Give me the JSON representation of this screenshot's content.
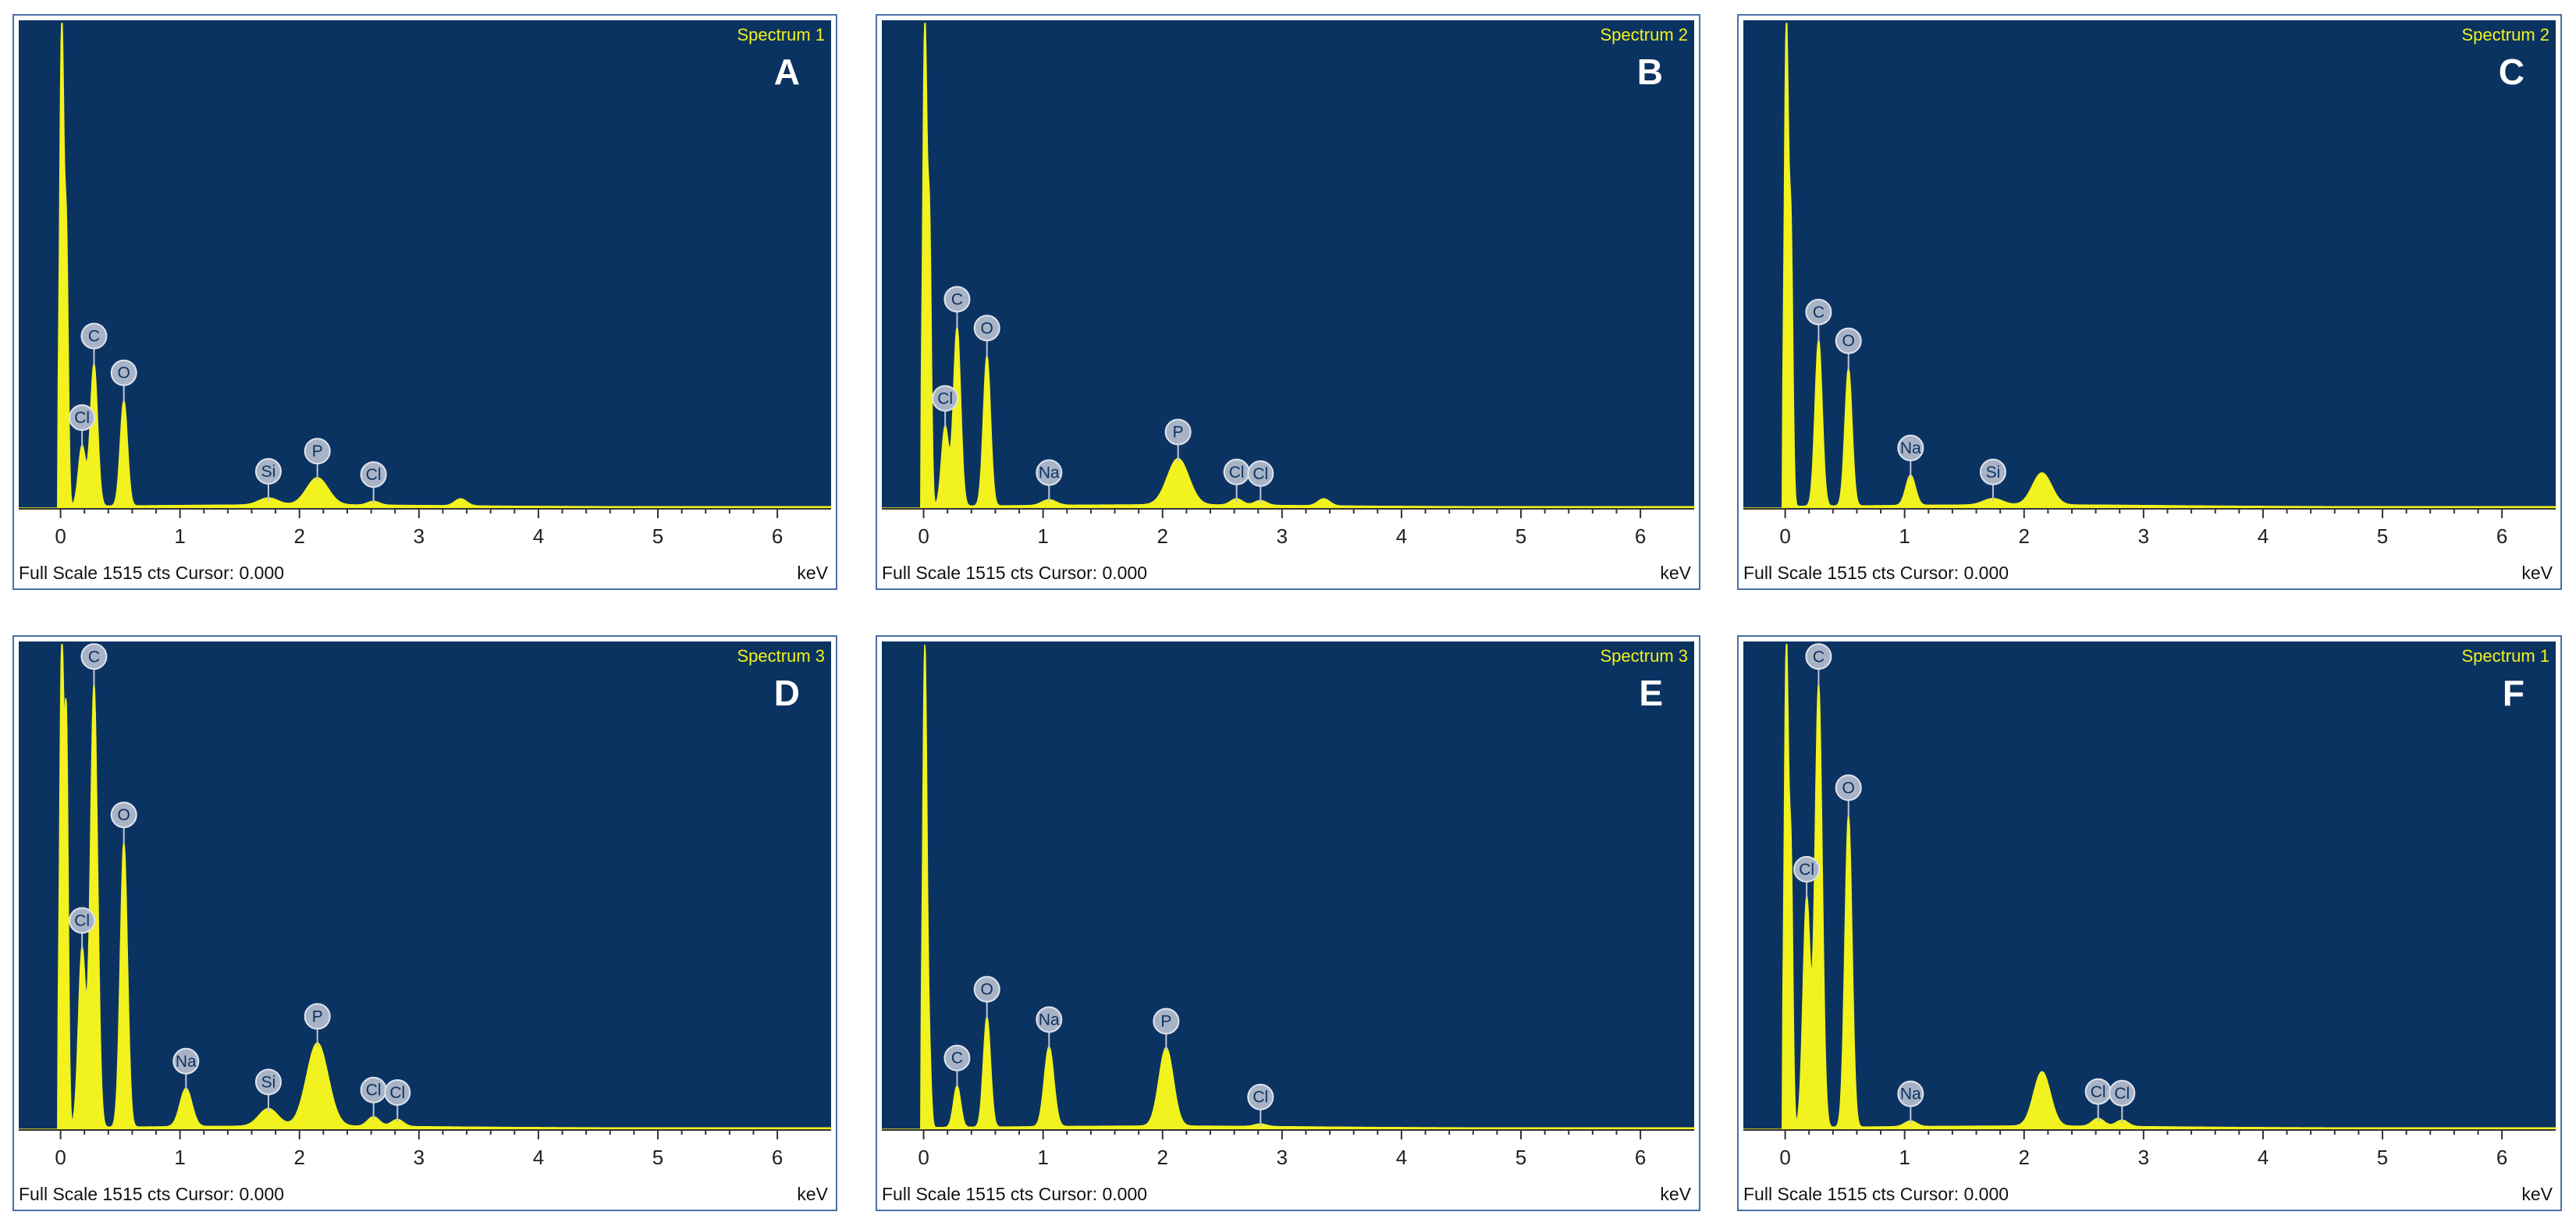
{
  "chart_data": [
    {
      "type": "line",
      "panel": "A",
      "title": "Spectrum 1",
      "xlabel": "keV",
      "footer": "Full Scale 1515 cts Cursor: 0.000",
      "xlim": [
        -0.35,
        6.45
      ],
      "ylim": [
        0,
        1515
      ],
      "xticks": [
        0,
        1,
        2,
        3,
        4,
        5,
        6
      ],
      "grid": false,
      "peaks": [
        {
          "x": 0.01,
          "y": 1515,
          "w": 0.018
        },
        {
          "x": 0.05,
          "y": 780,
          "w": 0.015
        },
        {
          "x": 0.18,
          "y": 190,
          "w": 0.03
        },
        {
          "x": 0.28,
          "y": 445,
          "w": 0.03
        },
        {
          "x": 0.53,
          "y": 330,
          "w": 0.03
        },
        {
          "x": 1.74,
          "y": 22,
          "w": 0.08
        },
        {
          "x": 2.15,
          "y": 85,
          "w": 0.09
        },
        {
          "x": 2.62,
          "y": 12,
          "w": 0.05
        },
        {
          "x": 3.35,
          "y": 22,
          "w": 0.05
        }
      ],
      "markers": [
        {
          "label": "Cl",
          "x": 0.18,
          "y": 190
        },
        {
          "label": "C",
          "x": 0.28,
          "y": 445
        },
        {
          "label": "O",
          "x": 0.53,
          "y": 330
        },
        {
          "label": "Si",
          "x": 1.74,
          "y": 22
        },
        {
          "label": "P",
          "x": 2.15,
          "y": 85
        },
        {
          "label": "Cl",
          "x": 2.62,
          "y": 12
        }
      ]
    },
    {
      "type": "line",
      "panel": "B",
      "title": "Spectrum 2",
      "xlabel": "keV",
      "footer": "Full Scale 1515 cts Cursor: 0.000",
      "xlim": [
        -0.35,
        6.45
      ],
      "ylim": [
        0,
        1515
      ],
      "xticks": [
        0,
        1,
        2,
        3,
        4,
        5,
        6
      ],
      "grid": false,
      "peaks": [
        {
          "x": 0.01,
          "y": 1515,
          "w": 0.018
        },
        {
          "x": 0.05,
          "y": 820,
          "w": 0.015
        },
        {
          "x": 0.18,
          "y": 250,
          "w": 0.03
        },
        {
          "x": 0.28,
          "y": 560,
          "w": 0.03
        },
        {
          "x": 0.53,
          "y": 470,
          "w": 0.03
        },
        {
          "x": 1.05,
          "y": 18,
          "w": 0.06
        },
        {
          "x": 2.13,
          "y": 145,
          "w": 0.09
        },
        {
          "x": 2.62,
          "y": 20,
          "w": 0.05
        },
        {
          "x": 2.82,
          "y": 15,
          "w": 0.05
        },
        {
          "x": 3.35,
          "y": 22,
          "w": 0.05
        }
      ],
      "markers": [
        {
          "label": "Cl",
          "x": 0.18,
          "y": 250
        },
        {
          "label": "C",
          "x": 0.28,
          "y": 560
        },
        {
          "label": "O",
          "x": 0.53,
          "y": 470
        },
        {
          "label": "Na",
          "x": 1.05,
          "y": 18
        },
        {
          "label": "P",
          "x": 2.13,
          "y": 145
        },
        {
          "label": "Cl",
          "x": 2.62,
          "y": 20
        },
        {
          "label": "Cl",
          "x": 2.82,
          "y": 15
        }
      ]
    },
    {
      "type": "line",
      "panel": "C",
      "title": "Spectrum 2",
      "xlabel": "keV",
      "footer": "Full Scale 1515 cts Cursor: 0.000",
      "xlim": [
        -0.35,
        6.45
      ],
      "ylim": [
        0,
        1515
      ],
      "xticks": [
        0,
        1,
        2,
        3,
        4,
        5,
        6
      ],
      "grid": false,
      "peaks": [
        {
          "x": 0.01,
          "y": 1515,
          "w": 0.018
        },
        {
          "x": 0.05,
          "y": 790,
          "w": 0.015
        },
        {
          "x": 0.28,
          "y": 520,
          "w": 0.03
        },
        {
          "x": 0.53,
          "y": 430,
          "w": 0.03
        },
        {
          "x": 1.05,
          "y": 95,
          "w": 0.04
        },
        {
          "x": 1.74,
          "y": 20,
          "w": 0.08
        },
        {
          "x": 2.15,
          "y": 100,
          "w": 0.08
        }
      ],
      "markers": [
        {
          "label": "C",
          "x": 0.28,
          "y": 520
        },
        {
          "label": "O",
          "x": 0.53,
          "y": 430
        },
        {
          "label": "Na",
          "x": 1.05,
          "y": 95
        },
        {
          "label": "Si",
          "x": 1.74,
          "y": 20
        }
      ]
    },
    {
      "type": "line",
      "panel": "D",
      "title": "Spectrum 3",
      "xlabel": "keV",
      "footer": "Full Scale 1515 cts Cursor: 0.000",
      "xlim": [
        -0.35,
        6.45
      ],
      "ylim": [
        0,
        1515
      ],
      "xticks": [
        0,
        1,
        2,
        3,
        4,
        5,
        6
      ],
      "grid": false,
      "peaks": [
        {
          "x": 0.01,
          "y": 1515,
          "w": 0.018
        },
        {
          "x": 0.05,
          "y": 1180,
          "w": 0.015
        },
        {
          "x": 0.18,
          "y": 560,
          "w": 0.03
        },
        {
          "x": 0.28,
          "y": 1385,
          "w": 0.03
        },
        {
          "x": 0.53,
          "y": 890,
          "w": 0.03
        },
        {
          "x": 1.05,
          "y": 120,
          "w": 0.05
        },
        {
          "x": 1.74,
          "y": 55,
          "w": 0.08
        },
        {
          "x": 2.15,
          "y": 260,
          "w": 0.09
        },
        {
          "x": 2.62,
          "y": 30,
          "w": 0.05
        },
        {
          "x": 2.82,
          "y": 22,
          "w": 0.05
        }
      ],
      "markers": [
        {
          "label": "Cl",
          "x": 0.18,
          "y": 560
        },
        {
          "label": "C",
          "x": 0.28,
          "y": 1385
        },
        {
          "label": "O",
          "x": 0.53,
          "y": 890
        },
        {
          "label": "Na",
          "x": 1.05,
          "y": 120
        },
        {
          "label": "Si",
          "x": 1.74,
          "y": 55
        },
        {
          "label": "P",
          "x": 2.15,
          "y": 260
        },
        {
          "label": "Cl",
          "x": 2.62,
          "y": 30
        },
        {
          "label": "Cl",
          "x": 2.82,
          "y": 22
        }
      ]
    },
    {
      "type": "line",
      "panel": "E",
      "title": "Spectrum 3",
      "xlabel": "keV",
      "footer": "Full Scale 1515 cts Cursor: 0.000",
      "xlim": [
        -0.35,
        6.45
      ],
      "ylim": [
        0,
        1515
      ],
      "xticks": [
        0,
        1,
        2,
        3,
        4,
        5,
        6
      ],
      "grid": false,
      "peaks": [
        {
          "x": 0.01,
          "y": 1515,
          "w": 0.018
        },
        {
          "x": 0.05,
          "y": 190,
          "w": 0.015
        },
        {
          "x": 0.28,
          "y": 130,
          "w": 0.03
        },
        {
          "x": 0.53,
          "y": 345,
          "w": 0.03
        },
        {
          "x": 1.05,
          "y": 250,
          "w": 0.04
        },
        {
          "x": 2.03,
          "y": 245,
          "w": 0.06
        },
        {
          "x": 2.82,
          "y": 8,
          "w": 0.05
        }
      ],
      "markers": [
        {
          "label": "C",
          "x": 0.28,
          "y": 130
        },
        {
          "label": "O",
          "x": 0.53,
          "y": 345
        },
        {
          "label": "Na",
          "x": 1.05,
          "y": 250
        },
        {
          "label": "P",
          "x": 2.03,
          "y": 245
        },
        {
          "label": "Cl",
          "x": 2.82,
          "y": 8
        }
      ]
    },
    {
      "type": "line",
      "panel": "F",
      "title": "Spectrum 1",
      "xlabel": "keV",
      "footer": "Full Scale 1515 cts Cursor: 0.000",
      "xlim": [
        -0.35,
        6.45
      ],
      "ylim": [
        0,
        1515
      ],
      "xticks": [
        0,
        1,
        2,
        3,
        4,
        5,
        6
      ],
      "grid": false,
      "peaks": [
        {
          "x": 0.01,
          "y": 1515,
          "w": 0.018
        },
        {
          "x": 0.05,
          "y": 780,
          "w": 0.015
        },
        {
          "x": 0.18,
          "y": 720,
          "w": 0.03
        },
        {
          "x": 0.28,
          "y": 1385,
          "w": 0.03
        },
        {
          "x": 0.53,
          "y": 975,
          "w": 0.03
        },
        {
          "x": 1.05,
          "y": 18,
          "w": 0.05
        },
        {
          "x": 2.15,
          "y": 170,
          "w": 0.07
        },
        {
          "x": 2.62,
          "y": 25,
          "w": 0.05
        },
        {
          "x": 2.82,
          "y": 20,
          "w": 0.05
        }
      ],
      "markers": [
        {
          "label": "Cl",
          "x": 0.18,
          "y": 720
        },
        {
          "label": "C",
          "x": 0.28,
          "y": 1385
        },
        {
          "label": "O",
          "x": 0.53,
          "y": 975
        },
        {
          "label": "Na",
          "x": 1.05,
          "y": 18
        },
        {
          "label": "Cl",
          "x": 2.62,
          "y": 25
        },
        {
          "label": "Cl",
          "x": 2.82,
          "y": 20
        }
      ]
    }
  ]
}
